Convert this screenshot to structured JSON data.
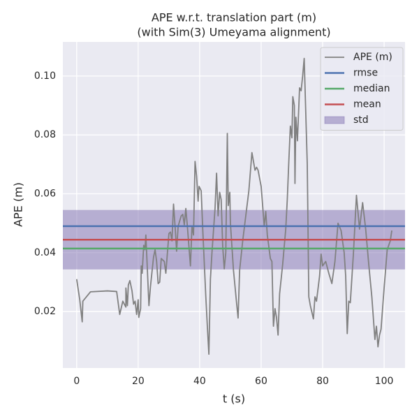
{
  "chart_data": {
    "type": "line",
    "title": [
      "APE w.r.t. translation part (m)",
      "(with Sim(3) Umeyama alignment)"
    ],
    "xlabel": "t (s)",
    "ylabel": "APE (m)",
    "xlim": [
      -4.5,
      106.8
    ],
    "ylim": [
      0.0008,
      0.1116
    ],
    "xticks": [
      0,
      20,
      40,
      60,
      80,
      100
    ],
    "yticks": [
      0.02,
      0.04,
      0.06,
      0.08,
      {
        "value": 0.1,
        "label": "0.10"
      }
    ],
    "grid": true,
    "legend": "upper right",
    "x": [
      0,
      1,
      1.8,
      2,
      4.5,
      10,
      13,
      14,
      15,
      16,
      16,
      16.5,
      16.8,
      17.3,
      18,
      18.5,
      19,
      19.5,
      20,
      20.2,
      20.8,
      21,
      21.3,
      21.8,
      22.2,
      22.5,
      23.5,
      24,
      25,
      25.5,
      26,
      26.5,
      27,
      27.5,
      28.5,
      29,
      30,
      30.5,
      31,
      31.5,
      32,
      32.5,
      33,
      34,
      34.5,
      35,
      35.5,
      36,
      37,
      37.5,
      38,
      38.5,
      39,
      39.5,
      39.8,
      40.5,
      41,
      42,
      42.5,
      43,
      43.5,
      44,
      45,
      45.5,
      46,
      46.5,
      47,
      47.5,
      48,
      48.5,
      49,
      49.3,
      49.8,
      50,
      51,
      52,
      52.5,
      53,
      54,
      56,
      57,
      58,
      58.5,
      59,
      60,
      61,
      61.5,
      62,
      63,
      63.5,
      64,
      64.5,
      65,
      65.5,
      66,
      67,
      68,
      68.5,
      69,
      69.5,
      70,
      70.3,
      70.8,
      71,
      71.3,
      71.8,
      72.5,
      73,
      73.5,
      74,
      75,
      75.5,
      76,
      77,
      77.5,
      78,
      79,
      79.5,
      80,
      81,
      82,
      83,
      84,
      85,
      86,
      87,
      87.5,
      88,
      88.5,
      89,
      90,
      91,
      92,
      93,
      94,
      95,
      96,
      97,
      97.5,
      98,
      98.5,
      99,
      100,
      101,
      102,
      102.5
    ],
    "series": [
      {
        "name": "APE (m)",
        "color": "#808080",
        "values": [
          0.031,
          0.024,
          0.0165,
          0.0235,
          0.0267,
          0.027,
          0.0268,
          0.019,
          0.0235,
          0.0215,
          0.028,
          0.022,
          0.029,
          0.0305,
          0.027,
          0.0225,
          0.0235,
          0.019,
          0.024,
          0.018,
          0.021,
          0.0355,
          0.033,
          0.0425,
          0.041,
          0.046,
          0.022,
          0.0285,
          0.0385,
          0.041,
          0.037,
          0.0295,
          0.03,
          0.038,
          0.037,
          0.033,
          0.0465,
          0.047,
          0.044,
          0.0565,
          0.049,
          0.0405,
          0.049,
          0.0525,
          0.053,
          0.0495,
          0.055,
          0.049,
          0.0355,
          0.049,
          0.046,
          0.071,
          0.066,
          0.0575,
          0.0625,
          0.061,
          0.048,
          0.025,
          0.015,
          0.0055,
          0.031,
          0.04,
          0.055,
          0.067,
          0.0525,
          0.0605,
          0.058,
          0.042,
          0.0345,
          0.04,
          0.0805,
          0.056,
          0.0605,
          0.05,
          0.034,
          0.023,
          0.0178,
          0.034,
          0.044,
          0.061,
          0.074,
          0.068,
          0.069,
          0.068,
          0.0625,
          0.049,
          0.054,
          0.046,
          0.038,
          0.037,
          0.015,
          0.021,
          0.018,
          0.012,
          0.026,
          0.036,
          0.048,
          0.058,
          0.071,
          0.083,
          0.079,
          0.093,
          0.09,
          0.0635,
          0.086,
          0.078,
          0.096,
          0.095,
          0.1,
          0.106,
          0.07,
          0.025,
          0.022,
          0.0175,
          0.025,
          0.0235,
          0.032,
          0.0395,
          0.0355,
          0.037,
          0.033,
          0.0295,
          0.037,
          0.05,
          0.0475,
          0.04,
          0.032,
          0.0125,
          0.0235,
          0.023,
          0.0395,
          0.0595,
          0.048,
          0.057,
          0.048,
          0.036,
          0.025,
          0.0105,
          0.015,
          0.008,
          0.012,
          0.014,
          0.028,
          0.041,
          0.044,
          0.0475
        ]
      }
    ],
    "reference_lines": [
      {
        "name": "rmse",
        "color": "#4c72b0",
        "value": 0.049
      },
      {
        "name": "median",
        "color": "#55a868",
        "value": 0.0414
      },
      {
        "name": "mean",
        "color": "#c44e52",
        "value": 0.0444
      }
    ],
    "std_band": {
      "name": "std",
      "color": "#8172b2",
      "value": 0.0101
    }
  }
}
